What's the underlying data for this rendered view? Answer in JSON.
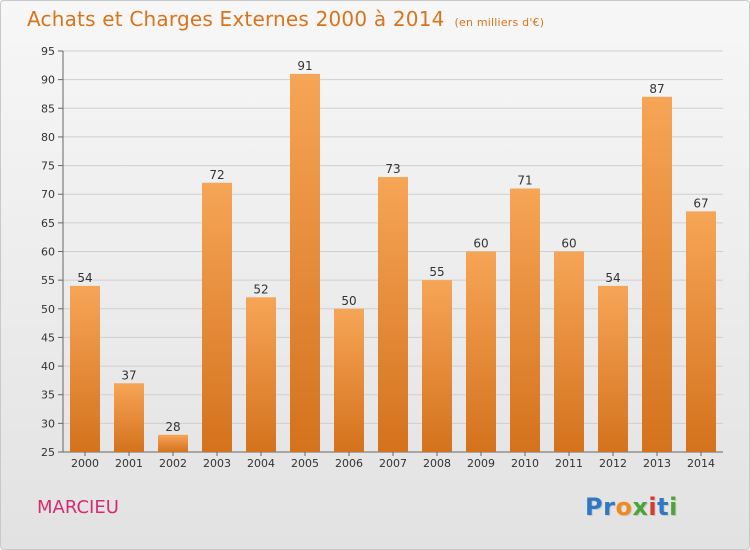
{
  "header": {
    "title": "Achats et Charges Externes 2000 à 2014",
    "unit": "(en milliers d'€)"
  },
  "footer": {
    "commune": "MARCIEU",
    "logo_letters": [
      {
        "ch": "P",
        "color": "#2f78c4"
      },
      {
        "ch": "r",
        "color": "#2f78c4"
      },
      {
        "ch": "o",
        "color": "#f08a1c"
      },
      {
        "ch": "x",
        "color": "#4aa53a"
      },
      {
        "ch": "i",
        "color": "#d83a2c"
      },
      {
        "ch": "t",
        "color": "#2f78c4"
      },
      {
        "ch": "i",
        "color": "#4aa53a"
      }
    ]
  },
  "colors": {
    "bar_top": "#f6a556",
    "bar_bottom": "#d4721d",
    "accent": "#d9741c",
    "grid": "#cfcfcf",
    "axis_text": "#333333"
  },
  "chart_data": {
    "type": "bar",
    "title": "Achats et Charges Externes 2000 à 2014",
    "subtitle": "(en milliers d'€)",
    "xlabel": "",
    "ylabel": "",
    "ylim": [
      25,
      95
    ],
    "yticks": [
      25,
      30,
      35,
      40,
      45,
      50,
      55,
      60,
      65,
      70,
      75,
      80,
      85,
      90,
      95
    ],
    "grid": true,
    "categories": [
      "2000",
      "2001",
      "2002",
      "2003",
      "2004",
      "2005",
      "2006",
      "2007",
      "2008",
      "2009",
      "2010",
      "2011",
      "2012",
      "2013",
      "2014"
    ],
    "values": [
      54,
      37,
      28,
      72,
      52,
      91,
      50,
      73,
      55,
      60,
      71,
      60,
      54,
      87,
      67
    ]
  }
}
